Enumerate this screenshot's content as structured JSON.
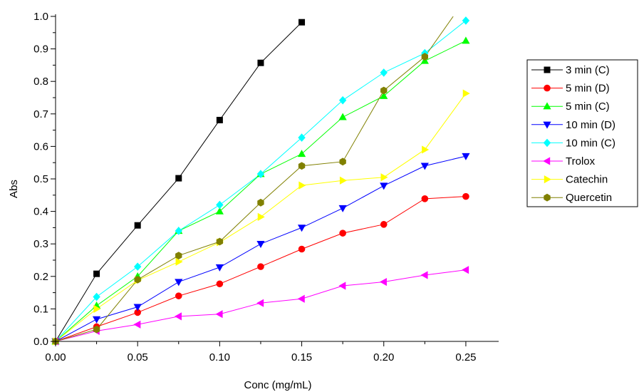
{
  "chart_data": {
    "type": "line",
    "title": "",
    "xlabel": "Conc (mg/mL)",
    "ylabel": "Abs",
    "xlim": [
      0,
      0.27
    ],
    "ylim": [
      0,
      1.0
    ],
    "xticks": [
      0.0,
      0.05,
      0.1,
      0.15,
      0.2,
      0.25
    ],
    "xtick_labels": [
      "0.00",
      "0.05",
      "0.10",
      "0.15",
      "0.20",
      "0.25"
    ],
    "yticks": [
      0.0,
      0.1,
      0.2,
      0.3,
      0.4,
      0.5,
      0.6,
      0.7,
      0.8,
      0.9,
      1.0
    ],
    "ytick_labels": [
      "0.0",
      "0.1",
      "0.2",
      "0.3",
      "0.4",
      "0.5",
      "0.6",
      "0.7",
      "0.8",
      "0.9",
      "1.0"
    ],
    "grid": false,
    "legend_position": "right",
    "series": [
      {
        "name": "3 min (C)",
        "marker": "square",
        "color": "#000000",
        "x": [
          0,
          0.025,
          0.05,
          0.075,
          0.1,
          0.125,
          0.15
        ],
        "y": [
          0.0,
          0.208,
          0.357,
          0.502,
          0.681,
          0.857,
          0.982
        ]
      },
      {
        "name": "5 min (D)",
        "marker": "circle",
        "color": "#ff0000",
        "x": [
          0,
          0.025,
          0.05,
          0.075,
          0.1,
          0.125,
          0.15,
          0.175,
          0.2,
          0.225,
          0.25
        ],
        "y": [
          0.0,
          0.045,
          0.089,
          0.14,
          0.177,
          0.23,
          0.284,
          0.333,
          0.36,
          0.439,
          0.446
        ]
      },
      {
        "name": "5 min (C)",
        "marker": "triangle-up",
        "color": "#00ff00",
        "x": [
          0,
          0.025,
          0.05,
          0.075,
          0.1,
          0.125,
          0.15,
          0.175,
          0.2,
          0.225,
          0.25
        ],
        "y": [
          0.0,
          0.11,
          0.2,
          0.34,
          0.4,
          0.515,
          0.577,
          0.69,
          0.755,
          0.863,
          0.925
        ]
      },
      {
        "name": "10 min (D)",
        "marker": "triangle-down",
        "color": "#0000ff",
        "x": [
          0,
          0.025,
          0.05,
          0.075,
          0.1,
          0.125,
          0.15,
          0.175,
          0.2,
          0.225,
          0.25
        ],
        "y": [
          0.0,
          0.068,
          0.106,
          0.183,
          0.228,
          0.3,
          0.35,
          0.41,
          0.479,
          0.54,
          0.57
        ]
      },
      {
        "name": "10 min (C)",
        "marker": "diamond",
        "color": "#00ffff",
        "x": [
          0,
          0.025,
          0.05,
          0.075,
          0.1,
          0.125,
          0.15,
          0.175,
          0.2,
          0.225,
          0.25
        ],
        "y": [
          0.0,
          0.137,
          0.23,
          0.34,
          0.42,
          0.515,
          0.627,
          0.742,
          0.827,
          0.887,
          0.987
        ]
      },
      {
        "name": "Trolox",
        "marker": "triangle-left",
        "color": "#ff00ff",
        "x": [
          0,
          0.025,
          0.05,
          0.075,
          0.1,
          0.125,
          0.15,
          0.175,
          0.2,
          0.225,
          0.25
        ],
        "y": [
          0.0,
          0.032,
          0.052,
          0.077,
          0.084,
          0.118,
          0.131,
          0.171,
          0.183,
          0.204,
          0.22
        ]
      },
      {
        "name": "Catechin",
        "marker": "triangle-right",
        "color": "#ffff00",
        "x": [
          0,
          0.025,
          0.05,
          0.075,
          0.1,
          0.125,
          0.15,
          0.175,
          0.2,
          0.225,
          0.25
        ],
        "y": [
          0.0,
          0.1,
          0.188,
          0.245,
          0.305,
          0.383,
          0.48,
          0.495,
          0.505,
          0.59,
          0.763
        ]
      },
      {
        "name": "Quercetin",
        "marker": "hexagon",
        "color": "#808000",
        "x": [
          0,
          0.025,
          0.05,
          0.075,
          0.1,
          0.125,
          0.15,
          0.175,
          0.2,
          0.225,
          0.2423
        ],
        "y": [
          0.0,
          0.037,
          0.19,
          0.264,
          0.307,
          0.427,
          0.54,
          0.553,
          0.772,
          0.876,
          1.0
        ],
        "last_point_marker": false
      }
    ]
  }
}
